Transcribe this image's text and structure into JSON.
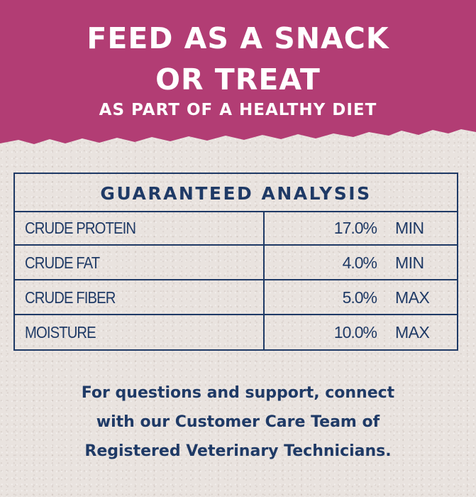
{
  "header": {
    "headline_line1": "FEED AS A SNACK",
    "headline_line2": "OR TREAT",
    "subline": "AS PART OF A HEALTHY DIET",
    "band_color": "#b23d74"
  },
  "analysis": {
    "title": "GUARANTEED ANALYSIS",
    "rows": [
      {
        "name": "CRUDE PROTEIN",
        "value": "17.0%",
        "unit": "MIN"
      },
      {
        "name": "CRUDE FAT",
        "value": "4.0%",
        "unit": "MIN"
      },
      {
        "name": "CRUDE FIBER",
        "value": "5.0%",
        "unit": "MAX"
      },
      {
        "name": "MOISTURE",
        "value": "10.0%",
        "unit": "MAX"
      }
    ],
    "ink_color": "#1f3a66"
  },
  "support": {
    "line1": "For questions and support, connect",
    "line2": "with our Customer Care Team of",
    "line3": "Registered Veterinary Technicians."
  }
}
